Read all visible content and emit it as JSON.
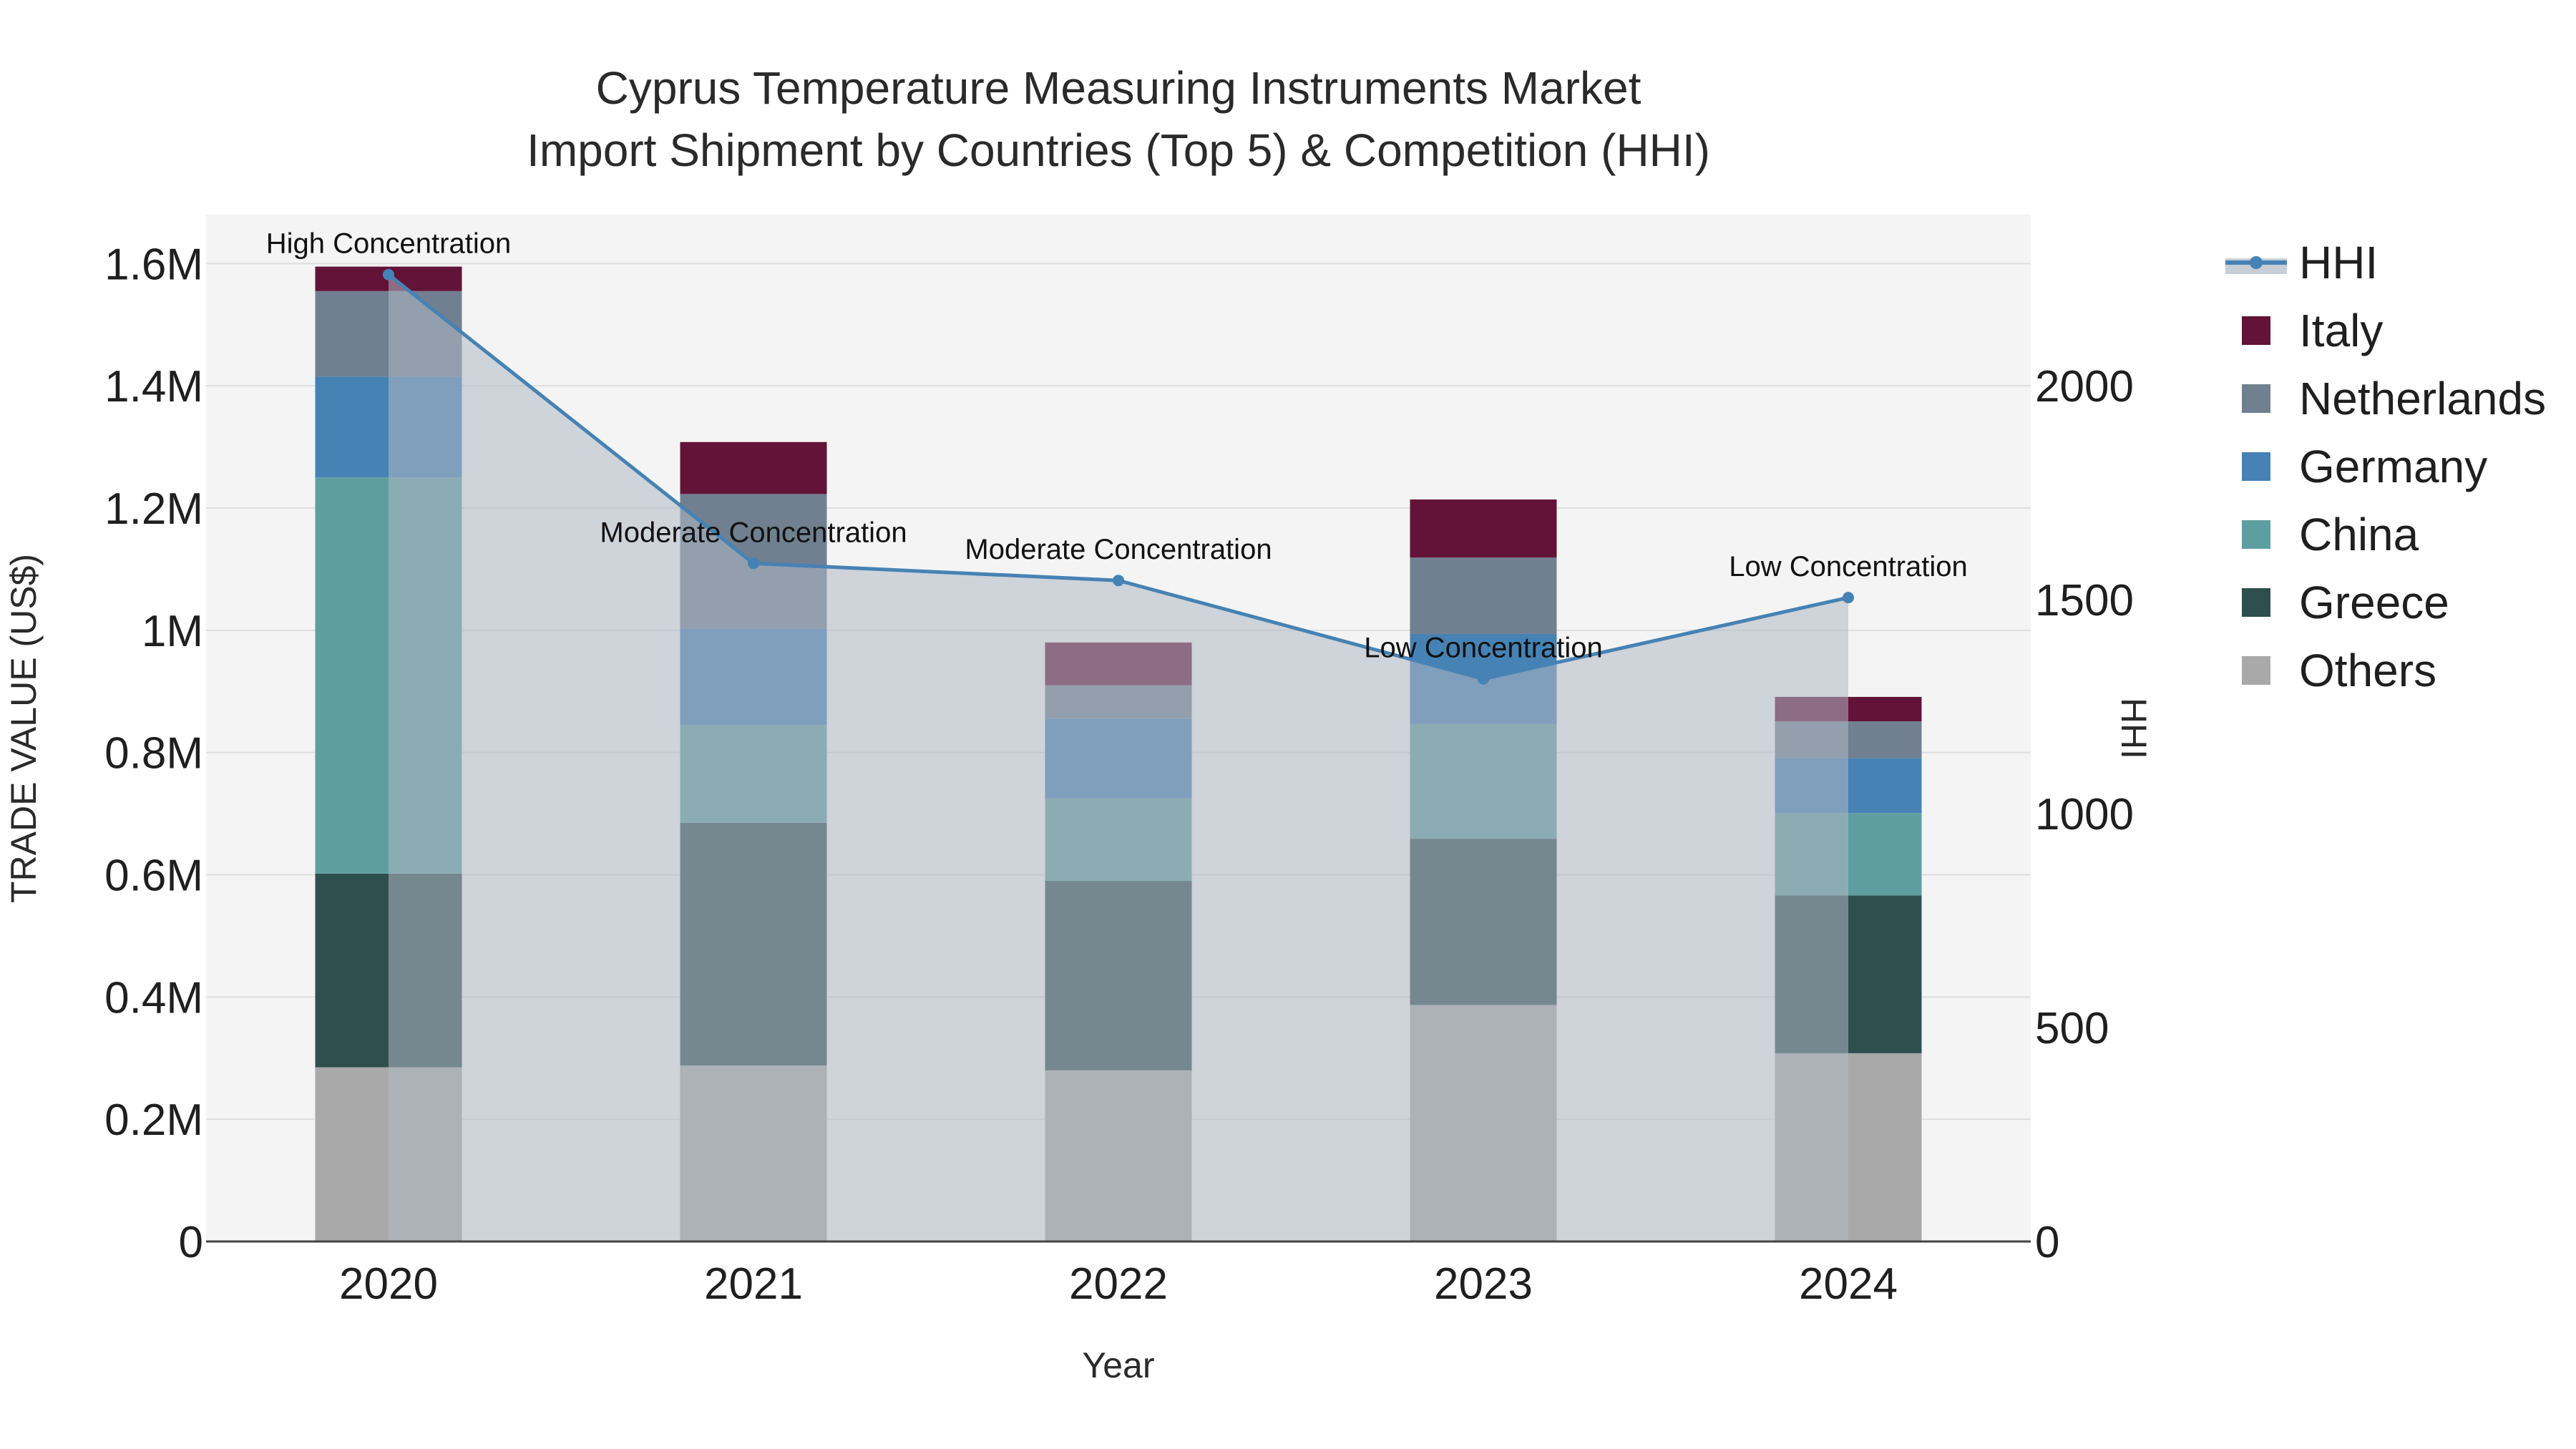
{
  "chart_data": {
    "type": "bar",
    "stacked": true,
    "title_lines": [
      "Cyprus Temperature Measuring Instruments Market",
      "Import Shipment by Countries (Top 5) & Competition (HHI)"
    ],
    "xlabel": "Year",
    "ylabel": "TRADE VALUE (US$)",
    "y2label": "HHI",
    "categories": [
      "2020",
      "2021",
      "2022",
      "2023",
      "2024"
    ],
    "ylim": [
      0,
      1680000
    ],
    "y2lim": [
      0,
      2400
    ],
    "yticks": [
      {
        "value": 0,
        "label": "0"
      },
      {
        "value": 200000,
        "label": "0.2M"
      },
      {
        "value": 400000,
        "label": "0.4M"
      },
      {
        "value": 600000,
        "label": "0.6M"
      },
      {
        "value": 800000,
        "label": "0.8M"
      },
      {
        "value": 1000000,
        "label": "1M"
      },
      {
        "value": 1200000,
        "label": "1.2M"
      },
      {
        "value": 1400000,
        "label": "1.4M"
      },
      {
        "value": 1600000,
        "label": "1.6M"
      }
    ],
    "y2ticks": [
      {
        "value": 0,
        "label": "0"
      },
      {
        "value": 500,
        "label": "500"
      },
      {
        "value": 1000,
        "label": "1000"
      },
      {
        "value": 1500,
        "label": "1500"
      },
      {
        "value": 2000,
        "label": "2000"
      }
    ],
    "series": [
      {
        "name": "Others",
        "color": "#a9a9a9",
        "values": [
          285000,
          288000,
          280000,
          387000,
          308000
        ]
      },
      {
        "name": "Greece",
        "color": "#2f4f4f",
        "values": [
          317000,
          397000,
          310000,
          272000,
          258000
        ]
      },
      {
        "name": "China",
        "color": "#5f9ea0",
        "values": [
          648000,
          160000,
          135000,
          188000,
          135000
        ]
      },
      {
        "name": "Germany",
        "color": "#4682b4",
        "values": [
          165000,
          158000,
          130000,
          147000,
          90000
        ]
      },
      {
        "name": "Netherlands",
        "color": "#708090",
        "values": [
          140000,
          220000,
          55000,
          125000,
          60000
        ]
      },
      {
        "name": "Italy",
        "color": "#621337",
        "values": [
          40000,
          85000,
          70000,
          95000,
          40000
        ]
      }
    ],
    "hhi": {
      "name": "HHI",
      "color": "#4682b4",
      "values": [
        2260,
        1585,
        1545,
        1315,
        1505
      ],
      "annotations": [
        "High Concentration",
        "Moderate Concentration",
        "Moderate Concentration",
        "Low Concentration",
        "Low Concentration"
      ]
    },
    "legend": [
      "HHI",
      "Italy",
      "Netherlands",
      "Germany",
      "China",
      "Greece",
      "Others"
    ],
    "legend_position": "top-right"
  }
}
